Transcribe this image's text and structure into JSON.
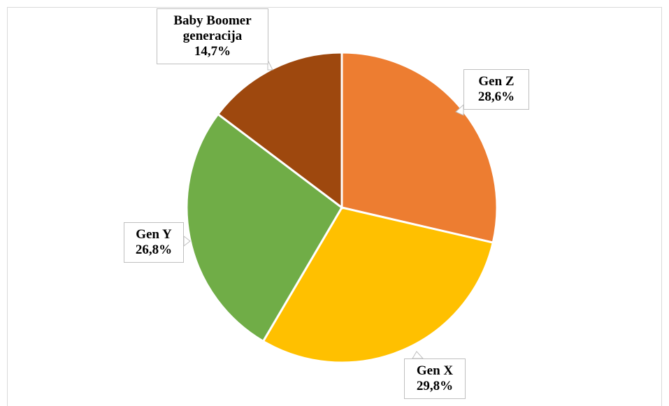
{
  "chart_data": {
    "type": "pie",
    "categories": [
      "Gen Z",
      "Gen X",
      "Gen Y",
      "Baby Boomer generacija"
    ],
    "values": [
      28.6,
      29.8,
      26.8,
      14.7
    ],
    "value_labels": [
      "28,6%",
      "29,8%",
      "26,8%",
      "14,7%"
    ],
    "colors": [
      "#ed7d31",
      "#ffc000",
      "#70ad47",
      "#9e480e"
    ]
  }
}
